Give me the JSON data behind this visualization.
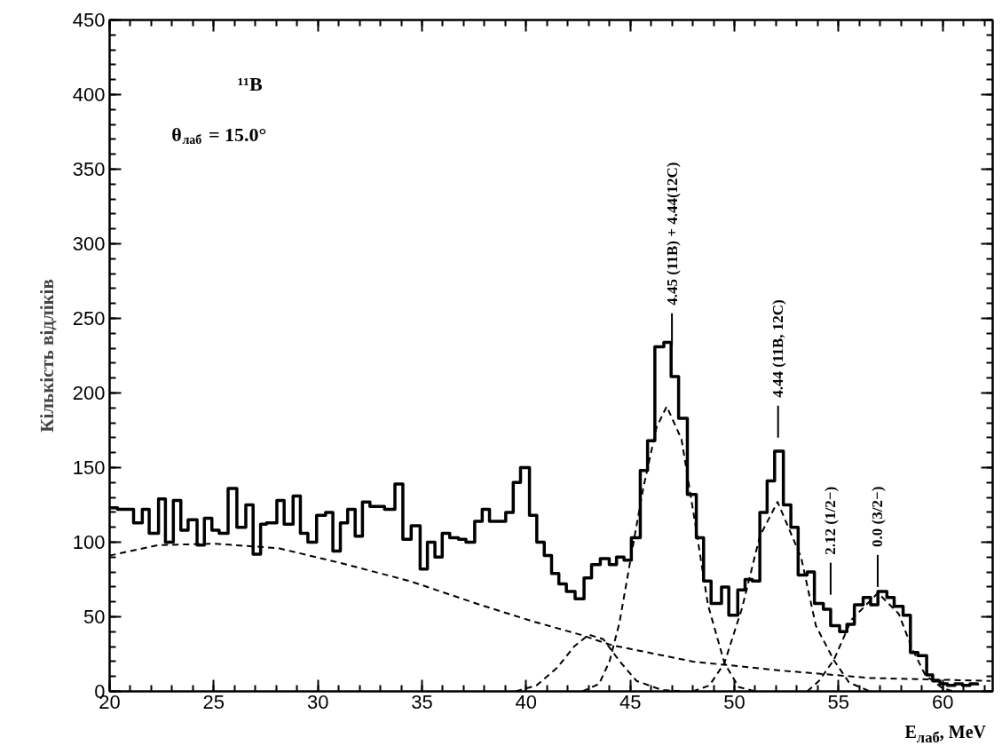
{
  "chart_data": {
    "type": "step",
    "color": "#000000",
    "x": [
      20.0,
      20.38,
      20.77,
      21.15,
      21.57,
      21.9,
      22.35,
      22.68,
      23.06,
      23.42,
      23.77,
      24.2,
      24.55,
      24.91,
      25.26,
      25.69,
      26.11,
      26.54,
      26.89,
      27.25,
      27.53,
      28.03,
      28.38,
      28.81,
      29.16,
      29.52,
      29.94,
      30.37,
      30.72,
      31.08,
      31.43,
      31.79,
      32.14,
      32.5,
      32.85,
      33.2,
      33.7,
      34.08,
      34.48,
      34.91,
      35.26,
      35.62,
      35.97,
      36.33,
      36.75,
      37.11,
      37.53,
      37.89,
      38.24,
      38.6,
      39.02,
      39.38,
      39.73,
      40.16,
      40.51,
      40.87,
      41.22,
      41.57,
      41.93,
      42.35,
      42.78,
      43.14,
      43.56,
      43.99,
      44.34,
      44.7,
      45.05,
      45.48,
      45.83,
      46.18,
      46.61,
      46.96,
      47.32,
      47.74,
      48.17,
      48.52,
      48.88,
      49.38,
      49.73,
      50.16,
      50.51,
      50.86,
      51.22,
      51.57,
      51.93,
      52.35,
      52.71,
      53.06,
      53.49,
      53.84,
      54.27,
      54.62,
      55.05,
      55.4,
      55.76,
      56.18,
      56.54,
      56.89,
      57.32,
      57.67,
      58.1,
      58.45,
      58.81,
      59.23,
      59.52,
      59.87,
      60.23,
      60.59,
      60.95,
      61.31,
      61.67
    ],
    "values": [
      123,
      122,
      122,
      113,
      122,
      106,
      129,
      100,
      128,
      108,
      115,
      98,
      116,
      108,
      106,
      136,
      110,
      125,
      92,
      112,
      113,
      128,
      112,
      131,
      106,
      100,
      118,
      120,
      94,
      113,
      122,
      104,
      127,
      124,
      124,
      122,
      139,
      102,
      111,
      82,
      100,
      90,
      106,
      103,
      102,
      100,
      114,
      122,
      114,
      114,
      120,
      140,
      150,
      118,
      100,
      91,
      79,
      72,
      67,
      62,
      76,
      85,
      89,
      85,
      90,
      88,
      103,
      148,
      168,
      231,
      234,
      211,
      183,
      132,
      103,
      74,
      59,
      70,
      51,
      68,
      75,
      74,
      120,
      141,
      161,
      125,
      110,
      78,
      80,
      59,
      55,
      44,
      40,
      45,
      58,
      63,
      58,
      67,
      63,
      57,
      51,
      26,
      24,
      11,
      7,
      5,
      4,
      5,
      4,
      5,
      4
    ],
    "series": [
      {
        "type": "line",
        "color": "#000000",
        "line_style": "dashed",
        "x": [
          20,
          22.3,
          25,
          28.1,
          31.1,
          34.4,
          37.8,
          40.3,
          42.6,
          44.1,
          48,
          52.2,
          56.5,
          62.3
        ],
        "values": [
          91,
          98,
          99,
          96,
          86,
          74,
          58,
          47,
          38,
          31,
          20,
          14,
          9,
          7
        ]
      },
      {
        "type": "line",
        "color": "#000000",
        "line_style": "dashed",
        "x": [
          39.5,
          40.5,
          41.5,
          42.3,
          43,
          43.7,
          44.5,
          45.3,
          46.5,
          47.5
        ],
        "values": [
          0,
          4,
          16,
          30,
          38,
          35,
          20,
          7,
          1,
          0
        ]
      },
      {
        "type": "line",
        "color": "#000000",
        "line_style": "dashed",
        "x": [
          42.7,
          43.5,
          44,
          44.48,
          45.26,
          45.62,
          46.26,
          46.75,
          47.46,
          48.1,
          48.73,
          49.52,
          50.2,
          51
        ],
        "values": [
          0,
          5,
          20,
          46,
          108,
          136,
          177,
          191,
          169,
          114,
          58,
          19,
          3,
          0
        ]
      },
      {
        "type": "line",
        "color": "#000000",
        "line_style": "dashed",
        "x": [
          48,
          48.8,
          49.52,
          50.37,
          51.22,
          52.07,
          53.2,
          53.91,
          54.77,
          55.5,
          56.5
        ],
        "values": [
          0,
          4,
          19,
          56,
          104,
          127,
          90,
          44,
          21,
          6,
          0
        ]
      },
      {
        "type": "line",
        "color": "#000000",
        "line_style": "dashed",
        "x": [
          53.5,
          54.06,
          54.77,
          55.62,
          56.89,
          57.89,
          58.52,
          59.16,
          60,
          60.5
        ],
        "values": [
          0,
          7,
          21,
          48,
          66,
          52,
          29,
          11,
          2,
          0
        ]
      }
    ],
    "xlim": [
      20,
      62.4
    ],
    "ylim": [
      0,
      450
    ],
    "xticks": [
      20,
      25,
      30,
      35,
      40,
      45,
      50,
      55,
      60
    ],
    "yticks": [
      0,
      50,
      100,
      150,
      200,
      250,
      300,
      350,
      400,
      450
    ],
    "xlabel": "E$_{лаб}$, MeV",
    "ylabel": "Кількість відліків",
    "annotations": [
      "¹¹B",
      "θ$_{лаб}$ = 15.0°",
      {
        "text": "4.45 (11B) + 4.44(12C)",
        "x": 47.0,
        "y": 232
      },
      "4.44 (11B, 12C)",
      "2.12 (1/2−)",
      {
        "text": "0.0 (3/2−)",
        "x": 56.88,
        "y": 70
      }
    ]
  }
}
